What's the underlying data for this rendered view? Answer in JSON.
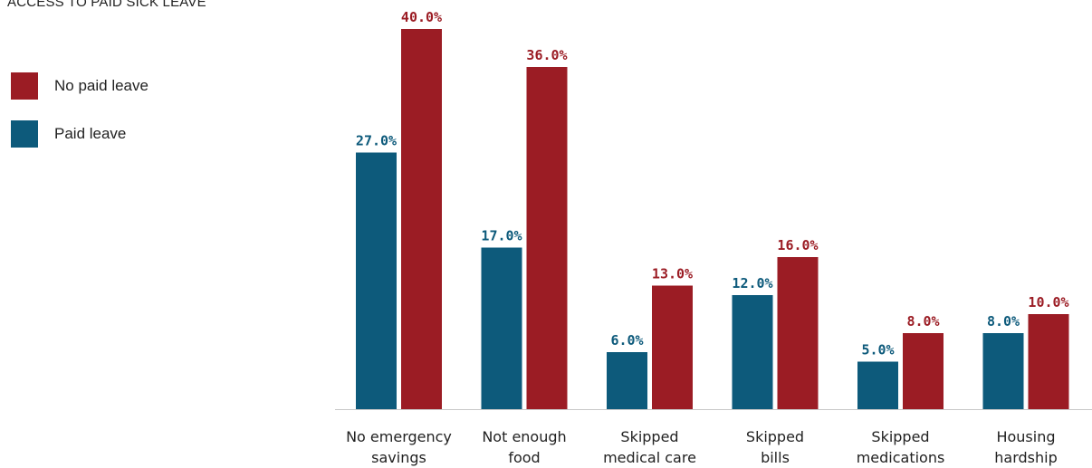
{
  "legend": {
    "title": "ACCESS TO PAID SICK LEAVE",
    "items": [
      {
        "label": "No paid leave",
        "color": "#9b1c24"
      },
      {
        "label": "Paid leave",
        "color": "#0d5a7b"
      }
    ]
  },
  "chart_data": {
    "type": "bar",
    "title": "",
    "xlabel": "",
    "ylabel": "",
    "ylim": [
      0,
      40
    ],
    "categories": [
      [
        "No emergency",
        "savings"
      ],
      [
        "Not enough",
        "food"
      ],
      [
        "Skipped",
        "medical care"
      ],
      [
        "Skipped",
        "bills"
      ],
      [
        "Skipped",
        "medications"
      ],
      [
        "Housing",
        "hardship"
      ]
    ],
    "series": [
      {
        "name": "Paid leave",
        "color": "#0d5a7b",
        "values": [
          27.0,
          17.0,
          6.0,
          12.0,
          5.0,
          8.0
        ],
        "labels": [
          "27.0%",
          "17.0%",
          "6.0%",
          "12.0%",
          "5.0%",
          "8.0%"
        ]
      },
      {
        "name": "No paid leave",
        "color": "#9b1c24",
        "values": [
          40.0,
          36.0,
          13.0,
          16.0,
          8.0,
          10.0
        ],
        "labels": [
          "40.0%",
          "36.0%",
          "13.0%",
          "16.0%",
          "8.0%",
          "10.0%"
        ]
      }
    ],
    "grid": false,
    "legend_position": "top-left"
  }
}
